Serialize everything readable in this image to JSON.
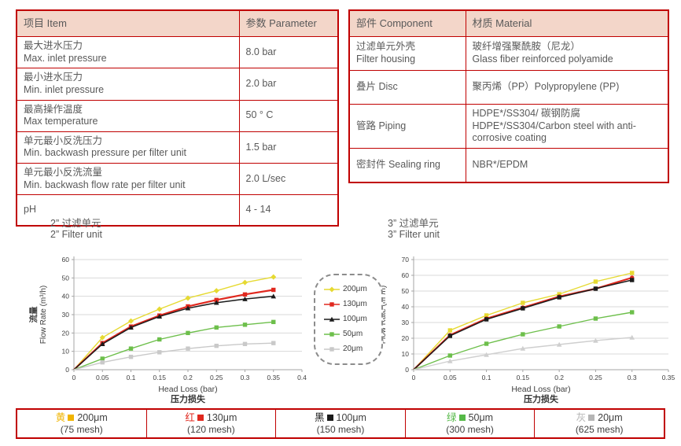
{
  "colors": {
    "table_border": "#c00000",
    "table_header_bg": "#f3d6c9",
    "text_gray": "#595959",
    "grid": "#d9d9d9",
    "axis": "#a6a6a6"
  },
  "left_table": {
    "headers": [
      "项目 Item",
      "参数 Parameter"
    ],
    "rows": [
      {
        "item": [
          "最大进水压力",
          "Max. inlet pressure"
        ],
        "value": "8.0 bar"
      },
      {
        "item": [
          "最小进水压力",
          "Min. inlet pressure"
        ],
        "value": "2.0 bar"
      },
      {
        "item": [
          "最高操作温度",
          "Max temperature"
        ],
        "value": "50 ° C"
      },
      {
        "item": [
          "单元最小反洗压力",
          "Min. backwash pressure per filter unit"
        ],
        "value": "1.5 bar"
      },
      {
        "item": [
          "单元最小反洗流量",
          "Min. backwash flow rate per filter unit"
        ],
        "value": "2.0 L/sec"
      },
      {
        "item": [
          "pH"
        ],
        "value": "4 - 14"
      }
    ]
  },
  "right_table": {
    "headers": [
      "部件 Component",
      "材质 Material"
    ],
    "rows": [
      {
        "component": [
          "过滤单元外壳",
          "Filter housing"
        ],
        "material": [
          "玻纤增强聚酰胺（尼龙）",
          "Glass fiber reinforced polyamide"
        ]
      },
      {
        "component": [
          "叠片 Disc"
        ],
        "material": [
          "聚丙烯（PP）Polypropylene (PP)"
        ]
      },
      {
        "component": [
          "管路 Piping"
        ],
        "material": [
          "HDPE*/SS304/ 碳钢防腐",
          "HDPE*/SS304/Carbon steel with anti-corrosive coating"
        ]
      },
      {
        "component": [
          "密封件 Sealing ring"
        ],
        "material": [
          "NBR*/EPDM"
        ]
      }
    ]
  },
  "chart_titles": {
    "left": [
      "2”  过滤单元",
      "2”  Filter unit"
    ],
    "right": [
      "3”  过滤单元",
      "3”  Filter unit"
    ]
  },
  "chart_data": [
    {
      "type": "line",
      "title": "2\" Filter unit",
      "xlabel": "Head Loss (bar)",
      "xlabel_zh": "压力损失",
      "ylabel_zh": "流量",
      "ylabel": "Flow Rate (m³/h)",
      "xlim": [
        0,
        0.4
      ],
      "ylim": [
        0,
        60
      ],
      "xtick": 0.05,
      "ytick": 10,
      "grid": true,
      "x": [
        0,
        0.05,
        0.1,
        0.15,
        0.2,
        0.25,
        0.3,
        0.35
      ],
      "series": [
        {
          "name": "200μm",
          "color": "#e6da32",
          "marker": "diamond",
          "width": 1.4,
          "values": [
            0,
            17.5,
            26.5,
            33,
            39,
            43,
            47.5,
            50.5
          ]
        },
        {
          "name": "130μm",
          "color": "#e0281e",
          "marker": "square",
          "width": 2.2,
          "values": [
            0,
            14.5,
            23.5,
            29.5,
            34.5,
            38,
            41,
            43.5
          ]
        },
        {
          "name": "100μm",
          "color": "#1b1b1b",
          "marker": "triangle",
          "width": 1.5,
          "values": [
            0,
            14,
            23,
            29,
            33.5,
            36.5,
            38.5,
            40
          ]
        },
        {
          "name": "50μm",
          "color": "#6dbf4b",
          "marker": "square",
          "width": 1.4,
          "values": [
            0,
            6,
            11.5,
            16.5,
            20,
            23,
            24.5,
            26
          ]
        },
        {
          "name": "20μm",
          "color": "#c9c9c9",
          "marker": "square",
          "width": 1.4,
          "values": [
            0,
            4,
            7,
            9.5,
            11.5,
            13,
            14,
            14.5
          ]
        }
      ]
    },
    {
      "type": "line",
      "title": "3\" Filter unit",
      "xlabel": "Head Loss (bar)",
      "xlabel_zh": "压力损失",
      "ylabel_zh": "流量",
      "ylabel": "Flow Rate (m³/h)",
      "xlim": [
        0,
        0.35
      ],
      "ylim": [
        0,
        70
      ],
      "xtick": 0.05,
      "ytick": 10,
      "grid": true,
      "x": [
        0,
        0.05,
        0.1,
        0.15,
        0.2,
        0.25,
        0.3
      ],
      "series": [
        {
          "name": "200μm",
          "color": "#e6da32",
          "marker": "square",
          "width": 1.4,
          "values": [
            0,
            25,
            34.5,
            42.5,
            48,
            56,
            61.5
          ]
        },
        {
          "name": "130μm",
          "color": "#e0281e",
          "marker": "circle",
          "width": 2.2,
          "values": [
            0,
            22,
            32.5,
            39.5,
            46.5,
            51.5,
            58.5
          ]
        },
        {
          "name": "100μm",
          "color": "#1b1b1b",
          "marker": "square",
          "width": 1.5,
          "values": [
            0,
            21.5,
            32,
            39,
            46,
            51.5,
            57
          ]
        },
        {
          "name": "50μm",
          "color": "#6dbf4b",
          "marker": "square",
          "width": 1.4,
          "values": [
            0,
            9,
            16.5,
            22.5,
            27.5,
            32.5,
            36.5
          ]
        },
        {
          "name": "20μm",
          "color": "#cfcfcf",
          "marker": "triangle",
          "width": 1.4,
          "values": [
            0,
            5.5,
            9.5,
            13.5,
            16,
            18.5,
            20.5
          ]
        }
      ]
    }
  ],
  "mid_legend": {
    "items": [
      {
        "label": "200μm",
        "color": "#e6da32",
        "marker": "diamond"
      },
      {
        "label": "130μm",
        "color": "#e0281e",
        "marker": "square"
      },
      {
        "label": "100μm",
        "color": "#1b1b1b",
        "marker": "triangle"
      },
      {
        "label": "50μm",
        "color": "#6dbf4b",
        "marker": "square"
      },
      {
        "label": "20μm",
        "color": "#c9c9c9",
        "marker": "square"
      }
    ]
  },
  "bottom_table": {
    "cells": [
      {
        "color_zh": "黄",
        "color": "#f0b400",
        "size": "200μm",
        "mesh": "(75 mesh)"
      },
      {
        "color_zh": "红",
        "color": "#e0281e",
        "size": "130μm",
        "mesh": "(120 mesh)"
      },
      {
        "color_zh": "黑",
        "color": "#1a1a1a",
        "size": "100μm",
        "mesh": "(150 mesh)"
      },
      {
        "color_zh": "绿",
        "color": "#55b948",
        "size": "50μm",
        "mesh": "(300 mesh)"
      },
      {
        "color_zh": "灰",
        "color": "#b5b5b5",
        "size": "20μm",
        "mesh": "(625 mesh)"
      }
    ]
  }
}
